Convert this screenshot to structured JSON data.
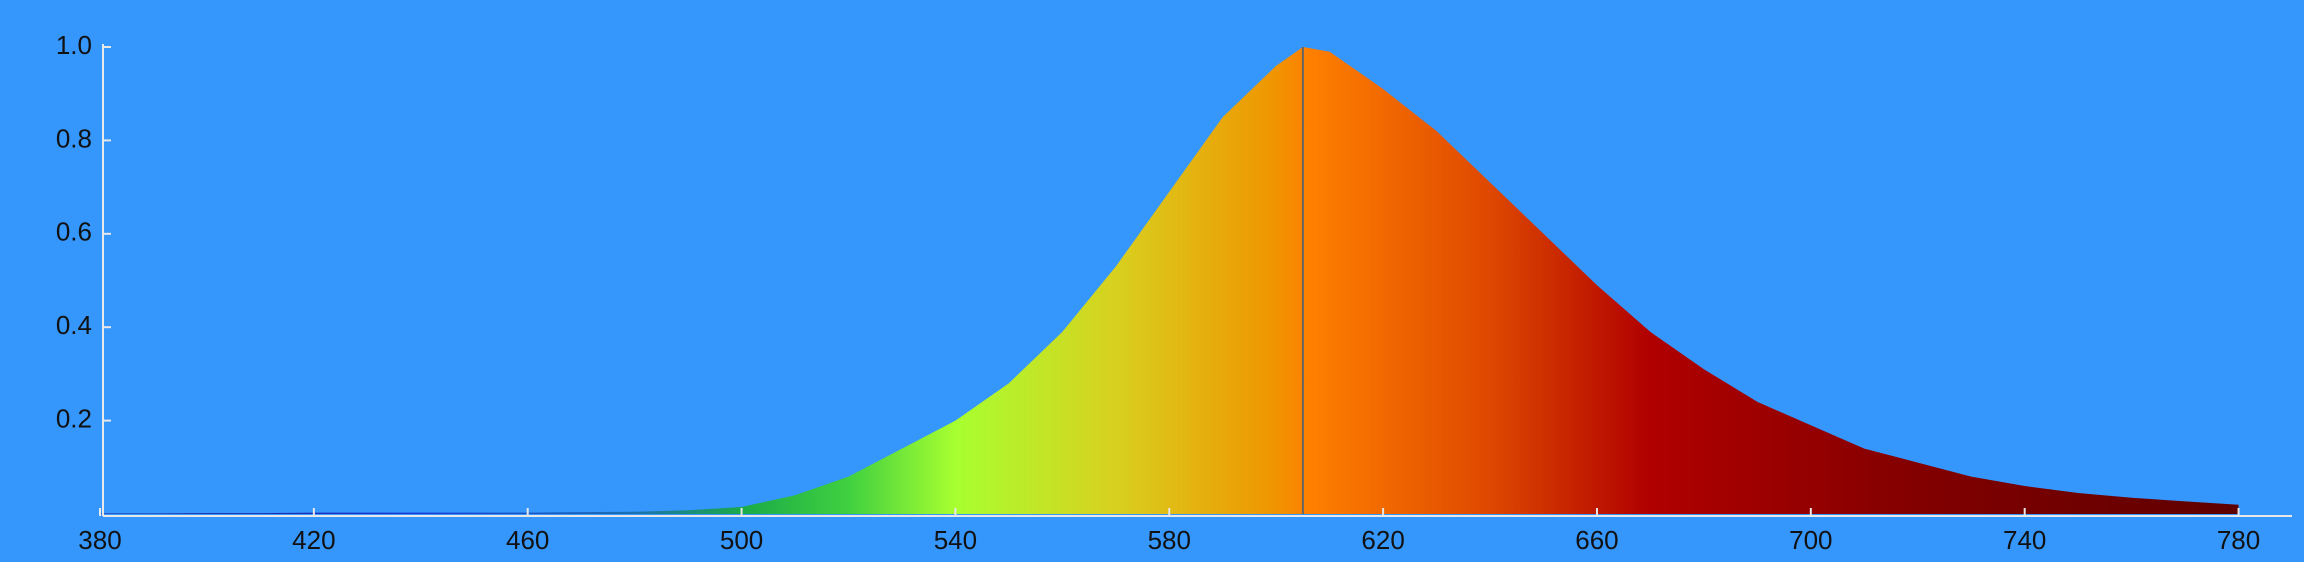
{
  "chart_data": {
    "type": "area",
    "x": [
      380,
      390,
      400,
      410,
      420,
      430,
      440,
      450,
      460,
      470,
      480,
      490,
      500,
      510,
      520,
      530,
      540,
      550,
      560,
      570,
      580,
      590,
      600,
      605,
      610,
      620,
      630,
      640,
      650,
      660,
      670,
      680,
      690,
      700,
      710,
      720,
      730,
      740,
      750,
      760,
      770,
      780
    ],
    "values": [
      0.001,
      0.001,
      0.002,
      0.002,
      0.003,
      0.003,
      0.003,
      0.003,
      0.003,
      0.004,
      0.005,
      0.008,
      0.015,
      0.04,
      0.08,
      0.14,
      0.2,
      0.28,
      0.39,
      0.53,
      0.69,
      0.85,
      0.96,
      1.0,
      0.99,
      0.91,
      0.82,
      0.71,
      0.6,
      0.49,
      0.39,
      0.31,
      0.24,
      0.19,
      0.14,
      0.11,
      0.08,
      0.06,
      0.045,
      0.035,
      0.027,
      0.02
    ],
    "xlim": [
      380,
      790
    ],
    "ylim": [
      0,
      1
    ],
    "xticks": [
      380,
      420,
      460,
      500,
      540,
      580,
      620,
      660,
      700,
      740,
      780
    ],
    "yticks": [
      0.2,
      0.4,
      0.6,
      0.8,
      {
        "value": 1,
        "label": "1.0"
      }
    ],
    "grid": false,
    "reference_line": 605,
    "gradient": [
      {
        "x": 380,
        "color": "#20208a"
      },
      {
        "x": 440,
        "color": "#1a3ad8"
      },
      {
        "x": 480,
        "color": "#1a70b0"
      },
      {
        "x": 500,
        "color": "#1aaa48"
      },
      {
        "x": 520,
        "color": "#40d040"
      },
      {
        "x": 540,
        "color": "#a8ff30"
      },
      {
        "x": 570,
        "color": "#d8d01e"
      },
      {
        "x": 600,
        "color": "#f09400"
      },
      {
        "x": 606,
        "color": "#ff8000"
      },
      {
        "x": 640,
        "color": "#de4800"
      },
      {
        "x": 670,
        "color": "#b00000"
      },
      {
        "x": 720,
        "color": "#820000"
      },
      {
        "x": 780,
        "color": "#5e0000"
      }
    ]
  }
}
